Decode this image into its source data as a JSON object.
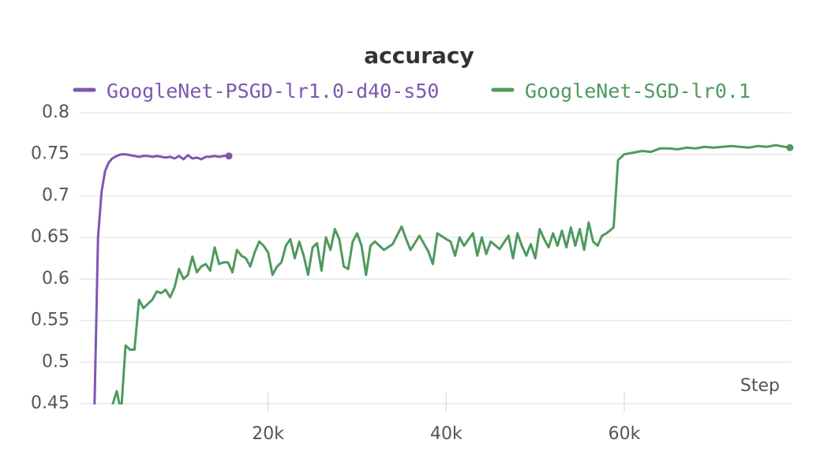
{
  "chart_data": {
    "type": "line",
    "title": "accuracy",
    "xlabel": "Step",
    "xlim": [
      0,
      78700
    ],
    "ylim": [
      0.45,
      0.8
    ],
    "xticks": [
      {
        "value": 20000,
        "label": "20k"
      },
      {
        "value": 40000,
        "label": "40k"
      },
      {
        "value": 60000,
        "label": "60k"
      }
    ],
    "yticks": [
      0.45,
      0.5,
      0.55,
      0.6,
      0.65,
      0.7,
      0.75,
      0.8
    ],
    "grid": true,
    "series": [
      {
        "name": "GoogleNet-PSGD-lr1.0-d40-s50",
        "color": "#7e57b0",
        "x": [
          500,
          900,
          1300,
          1700,
          2100,
          2500,
          3000,
          3500,
          4000,
          4500,
          5000,
          5500,
          6000,
          6500,
          7000,
          7500,
          8000,
          8500,
          9000,
          9500,
          10000,
          10500,
          11000,
          11500,
          12000,
          12500,
          13000,
          13500,
          14000,
          14500,
          15000,
          15600
        ],
        "values": [
          0.44,
          0.65,
          0.705,
          0.73,
          0.74,
          0.745,
          0.748,
          0.75,
          0.75,
          0.749,
          0.748,
          0.747,
          0.748,
          0.748,
          0.747,
          0.748,
          0.747,
          0.746,
          0.747,
          0.745,
          0.748,
          0.744,
          0.749,
          0.745,
          0.746,
          0.744,
          0.747,
          0.747,
          0.748,
          0.747,
          0.748,
          0.748
        ]
      },
      {
        "name": "GoogleNet-SGD-lr0.1",
        "color": "#4e9a5e",
        "x": [
          2000,
          3000,
          3500,
          4000,
          4500,
          5000,
          5500,
          6000,
          7000,
          7500,
          8000,
          8500,
          9000,
          9500,
          10000,
          10500,
          11000,
          11500,
          12000,
          12500,
          13000,
          13500,
          14000,
          14500,
          15000,
          15500,
          16000,
          16500,
          17000,
          17500,
          18000,
          18500,
          19000,
          19500,
          20000,
          20500,
          21000,
          21500,
          22000,
          22500,
          23000,
          23500,
          24000,
          24500,
          25000,
          25500,
          26000,
          26500,
          27000,
          27500,
          28000,
          28500,
          29000,
          29500,
          30000,
          30500,
          31000,
          31500,
          32000,
          33000,
          34000,
          35000,
          35500,
          36000,
          37000,
          38000,
          38500,
          39000,
          40000,
          40500,
          41000,
          41500,
          42000,
          43000,
          43500,
          44000,
          44500,
          45000,
          46000,
          47000,
          47500,
          48000,
          48500,
          49000,
          49500,
          50000,
          50500,
          51000,
          51500,
          52000,
          52500,
          53000,
          53500,
          54000,
          54500,
          55000,
          55500,
          56000,
          56500,
          57000,
          57500,
          58000,
          58800,
          59300,
          60000,
          61000,
          62000,
          63000,
          64000,
          65000,
          66000,
          67000,
          68000,
          69000,
          70000,
          71000,
          72000,
          73000,
          74000,
          75000,
          76000,
          77000,
          78000,
          78600
        ],
        "values": [
          0.43,
          0.465,
          0.44,
          0.52,
          0.515,
          0.515,
          0.575,
          0.565,
          0.575,
          0.585,
          0.583,
          0.587,
          0.578,
          0.59,
          0.612,
          0.6,
          0.605,
          0.627,
          0.608,
          0.615,
          0.618,
          0.61,
          0.638,
          0.618,
          0.62,
          0.62,
          0.608,
          0.635,
          0.628,
          0.625,
          0.615,
          0.632,
          0.645,
          0.64,
          0.632,
          0.605,
          0.615,
          0.62,
          0.64,
          0.648,
          0.625,
          0.645,
          0.628,
          0.605,
          0.638,
          0.643,
          0.61,
          0.65,
          0.635,
          0.66,
          0.648,
          0.615,
          0.612,
          0.645,
          0.655,
          0.64,
          0.605,
          0.64,
          0.645,
          0.635,
          0.642,
          0.663,
          0.648,
          0.635,
          0.652,
          0.633,
          0.618,
          0.655,
          0.648,
          0.645,
          0.628,
          0.65,
          0.64,
          0.655,
          0.628,
          0.65,
          0.63,
          0.645,
          0.636,
          0.652,
          0.625,
          0.655,
          0.64,
          0.628,
          0.642,
          0.625,
          0.66,
          0.648,
          0.638,
          0.655,
          0.64,
          0.658,
          0.638,
          0.662,
          0.64,
          0.66,
          0.635,
          0.668,
          0.645,
          0.64,
          0.652,
          0.655,
          0.662,
          0.743,
          0.75,
          0.752,
          0.754,
          0.753,
          0.757,
          0.757,
          0.756,
          0.758,
          0.757,
          0.759,
          0.758,
          0.759,
          0.76,
          0.759,
          0.758,
          0.76,
          0.759,
          0.761,
          0.759,
          0.758
        ]
      }
    ]
  }
}
